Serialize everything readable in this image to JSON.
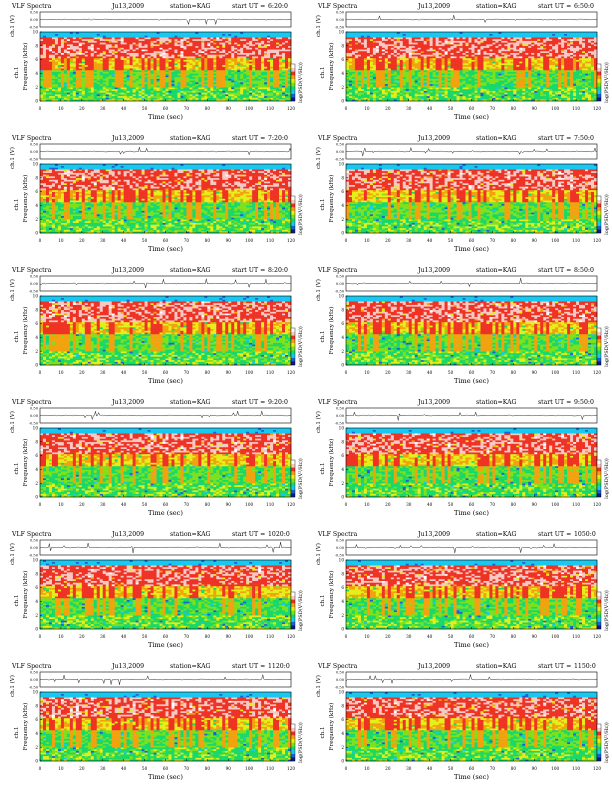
{
  "page": {
    "header_prefix": "VLF Spectra",
    "station_label": "station=KAG",
    "start_prefix": "start  UT =",
    "xlabel": "Time  (sec)",
    "ylabel_freq": "Frequency  (kHz)",
    "ylabel_ch": "ch.1 (V)",
    "ylabel_ch_short": "ch.1",
    "colorbar_label": "log(PSD(V²/Hz))",
    "x_ticks": [
      "0",
      "10",
      "20",
      "30",
      "40",
      "50",
      "60",
      "70",
      "80",
      "90",
      "100",
      "110",
      "120"
    ],
    "freq_ticks": [
      "0",
      "2",
      "4",
      "6",
      "8",
      "10"
    ],
    "volt_ticks": [
      "0.50",
      "0.00",
      "-0.50"
    ]
  },
  "chart_data": [
    {
      "type": "heatmap",
      "date": "Ju13,2009",
      "start_ut": "6:20:0",
      "xlim": [
        0,
        120
      ],
      "ylim_freq_khz": [
        0,
        10
      ],
      "ylim_volt": [
        -0.5,
        0.5
      ]
    },
    {
      "type": "heatmap",
      "date": "Ju13,2009",
      "start_ut": "6:50:0",
      "xlim": [
        0,
        120
      ],
      "ylim_freq_khz": [
        0,
        10
      ],
      "ylim_volt": [
        -0.5,
        0.5
      ]
    },
    {
      "type": "heatmap",
      "date": "Ju13,2009",
      "start_ut": "7:20:0",
      "xlim": [
        0,
        120
      ],
      "ylim_freq_khz": [
        0,
        10
      ],
      "ylim_volt": [
        -0.5,
        0.5
      ]
    },
    {
      "type": "heatmap",
      "date": "Ju13,2009",
      "start_ut": "7:50:0",
      "xlim": [
        0,
        120
      ],
      "ylim_freq_khz": [
        0,
        10
      ],
      "ylim_volt": [
        -0.5,
        0.5
      ]
    },
    {
      "type": "heatmap",
      "date": "Ju13,2009",
      "start_ut": "8:20:0",
      "xlim": [
        0,
        120
      ],
      "ylim_freq_khz": [
        0,
        10
      ],
      "ylim_volt": [
        -0.5,
        0.5
      ]
    },
    {
      "type": "heatmap",
      "date": "Ju13,2009",
      "start_ut": "8:50:0",
      "xlim": [
        0,
        120
      ],
      "ylim_freq_khz": [
        0,
        10
      ],
      "ylim_volt": [
        -0.5,
        0.5
      ]
    },
    {
      "type": "heatmap",
      "date": "Ju13,2009",
      "start_ut": "9:20:0",
      "xlim": [
        0,
        120
      ],
      "ylim_freq_khz": [
        0,
        10
      ],
      "ylim_volt": [
        -0.5,
        0.5
      ]
    },
    {
      "type": "heatmap",
      "date": "Ju13,2009",
      "start_ut": "9:50:0",
      "xlim": [
        0,
        120
      ],
      "ylim_freq_khz": [
        0,
        10
      ],
      "ylim_volt": [
        -0.5,
        0.5
      ]
    },
    {
      "type": "heatmap",
      "date": "Ju13,2009",
      "start_ut": "1020:0",
      "xlim": [
        0,
        120
      ],
      "ylim_freq_khz": [
        0,
        10
      ],
      "ylim_volt": [
        -0.5,
        0.5
      ]
    },
    {
      "type": "heatmap",
      "date": "Ju13,2009",
      "start_ut": "1050:0",
      "xlim": [
        0,
        120
      ],
      "ylim_freq_khz": [
        0,
        10
      ],
      "ylim_volt": [
        -0.5,
        0.5
      ]
    },
    {
      "type": "heatmap",
      "date": "Ju13,2009",
      "start_ut": "1120:0",
      "xlim": [
        0,
        120
      ],
      "ylim_freq_khz": [
        0,
        10
      ],
      "ylim_volt": [
        -0.5,
        0.5
      ]
    },
    {
      "type": "heatmap",
      "date": "Ju13,2009",
      "start_ut": "1150:0",
      "xlim": [
        0,
        120
      ],
      "ylim_freq_khz": [
        0,
        10
      ],
      "ylim_volt": [
        -0.5,
        0.5
      ]
    }
  ],
  "colors": {
    "spectrogram_palette": [
      "#0b1a8c",
      "#1d5fd6",
      "#18c8f0",
      "#19d86a",
      "#7de11c",
      "#e6ee1a",
      "#f2a20f",
      "#ee3224",
      "#f7c8c4",
      "#ffffff"
    ],
    "band_cyan": "#22d4e6",
    "trace": "#222222"
  }
}
